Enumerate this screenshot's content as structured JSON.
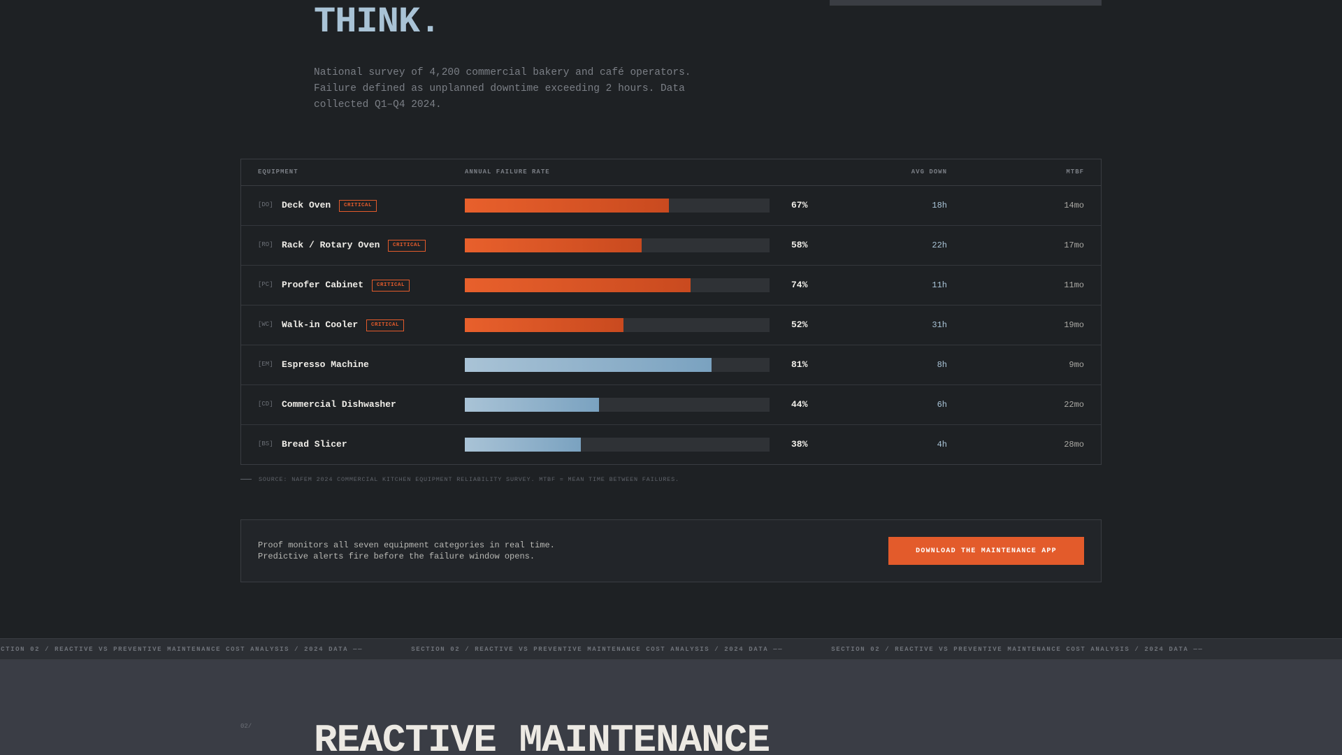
{
  "hero": {
    "title": "THINK.",
    "description": "National survey of 4,200 commercial bakery and café operators. Failure defined as unplanned downtime exceeding 2 hours. Data collected Q1–Q4 2024."
  },
  "table": {
    "headers": {
      "equipment": "EQUIPMENT",
      "failure_rate": "ANNUAL FAILURE RATE",
      "avg_down": "AVG DOWN",
      "mtbf": "MTBF"
    },
    "rows": [
      {
        "code": "[DO]",
        "name": "Deck Oven",
        "badge": "CRITICAL",
        "rate": 0.67,
        "pct": "67%",
        "down": "18h",
        "mtbf": "14mo",
        "color": "orange"
      },
      {
        "code": "[RO]",
        "name": "Rack / Rotary Oven",
        "badge": "CRITICAL",
        "rate": 0.58,
        "pct": "58%",
        "down": "22h",
        "mtbf": "17mo",
        "color": "orange"
      },
      {
        "code": "[PC]",
        "name": "Proofer Cabinet",
        "badge": "CRITICAL",
        "rate": 0.74,
        "pct": "74%",
        "down": "11h",
        "mtbf": "11mo",
        "color": "orange"
      },
      {
        "code": "[WC]",
        "name": "Walk-in Cooler",
        "badge": "CRITICAL",
        "rate": 0.52,
        "pct": "52%",
        "down": "31h",
        "mtbf": "19mo",
        "color": "orange"
      },
      {
        "code": "[EM]",
        "name": "Espresso Machine",
        "badge": "",
        "rate": 0.81,
        "pct": "81%",
        "down": "8h",
        "mtbf": "9mo",
        "color": "blue"
      },
      {
        "code": "[CD]",
        "name": "Commercial Dishwasher",
        "badge": "",
        "rate": 0.44,
        "pct": "44%",
        "down": "6h",
        "mtbf": "22mo",
        "color": "blue"
      },
      {
        "code": "[BS]",
        "name": "Bread Slicer",
        "badge": "",
        "rate": 0.38,
        "pct": "38%",
        "down": "4h",
        "mtbf": "28mo",
        "color": "blue"
      }
    ]
  },
  "source": "SOURCE: NAFEM 2024 COMMERCIAL KITCHEN EQUIPMENT RELIABILITY SURVEY. MTBF = MEAN TIME BETWEEN FAILURES.",
  "cta": {
    "line1": "Proof monitors all seven equipment categories in real time.",
    "line2": "Predictive alerts fire before the failure window opens.",
    "button": "DOWNLOAD THE MAINTENANCE APP"
  },
  "ticker": {
    "text": "SECTION 02 / REACTIVE VS PREVENTIVE MAINTENANCE COST ANALYSIS / 2024 DATA ——"
  },
  "section2": {
    "number": "02/",
    "title": "REACTIVE MAINTENANCE"
  },
  "colors": {
    "accent": "#e35b2b",
    "secondary": "#a9c3d6",
    "background": "#1e2124"
  }
}
